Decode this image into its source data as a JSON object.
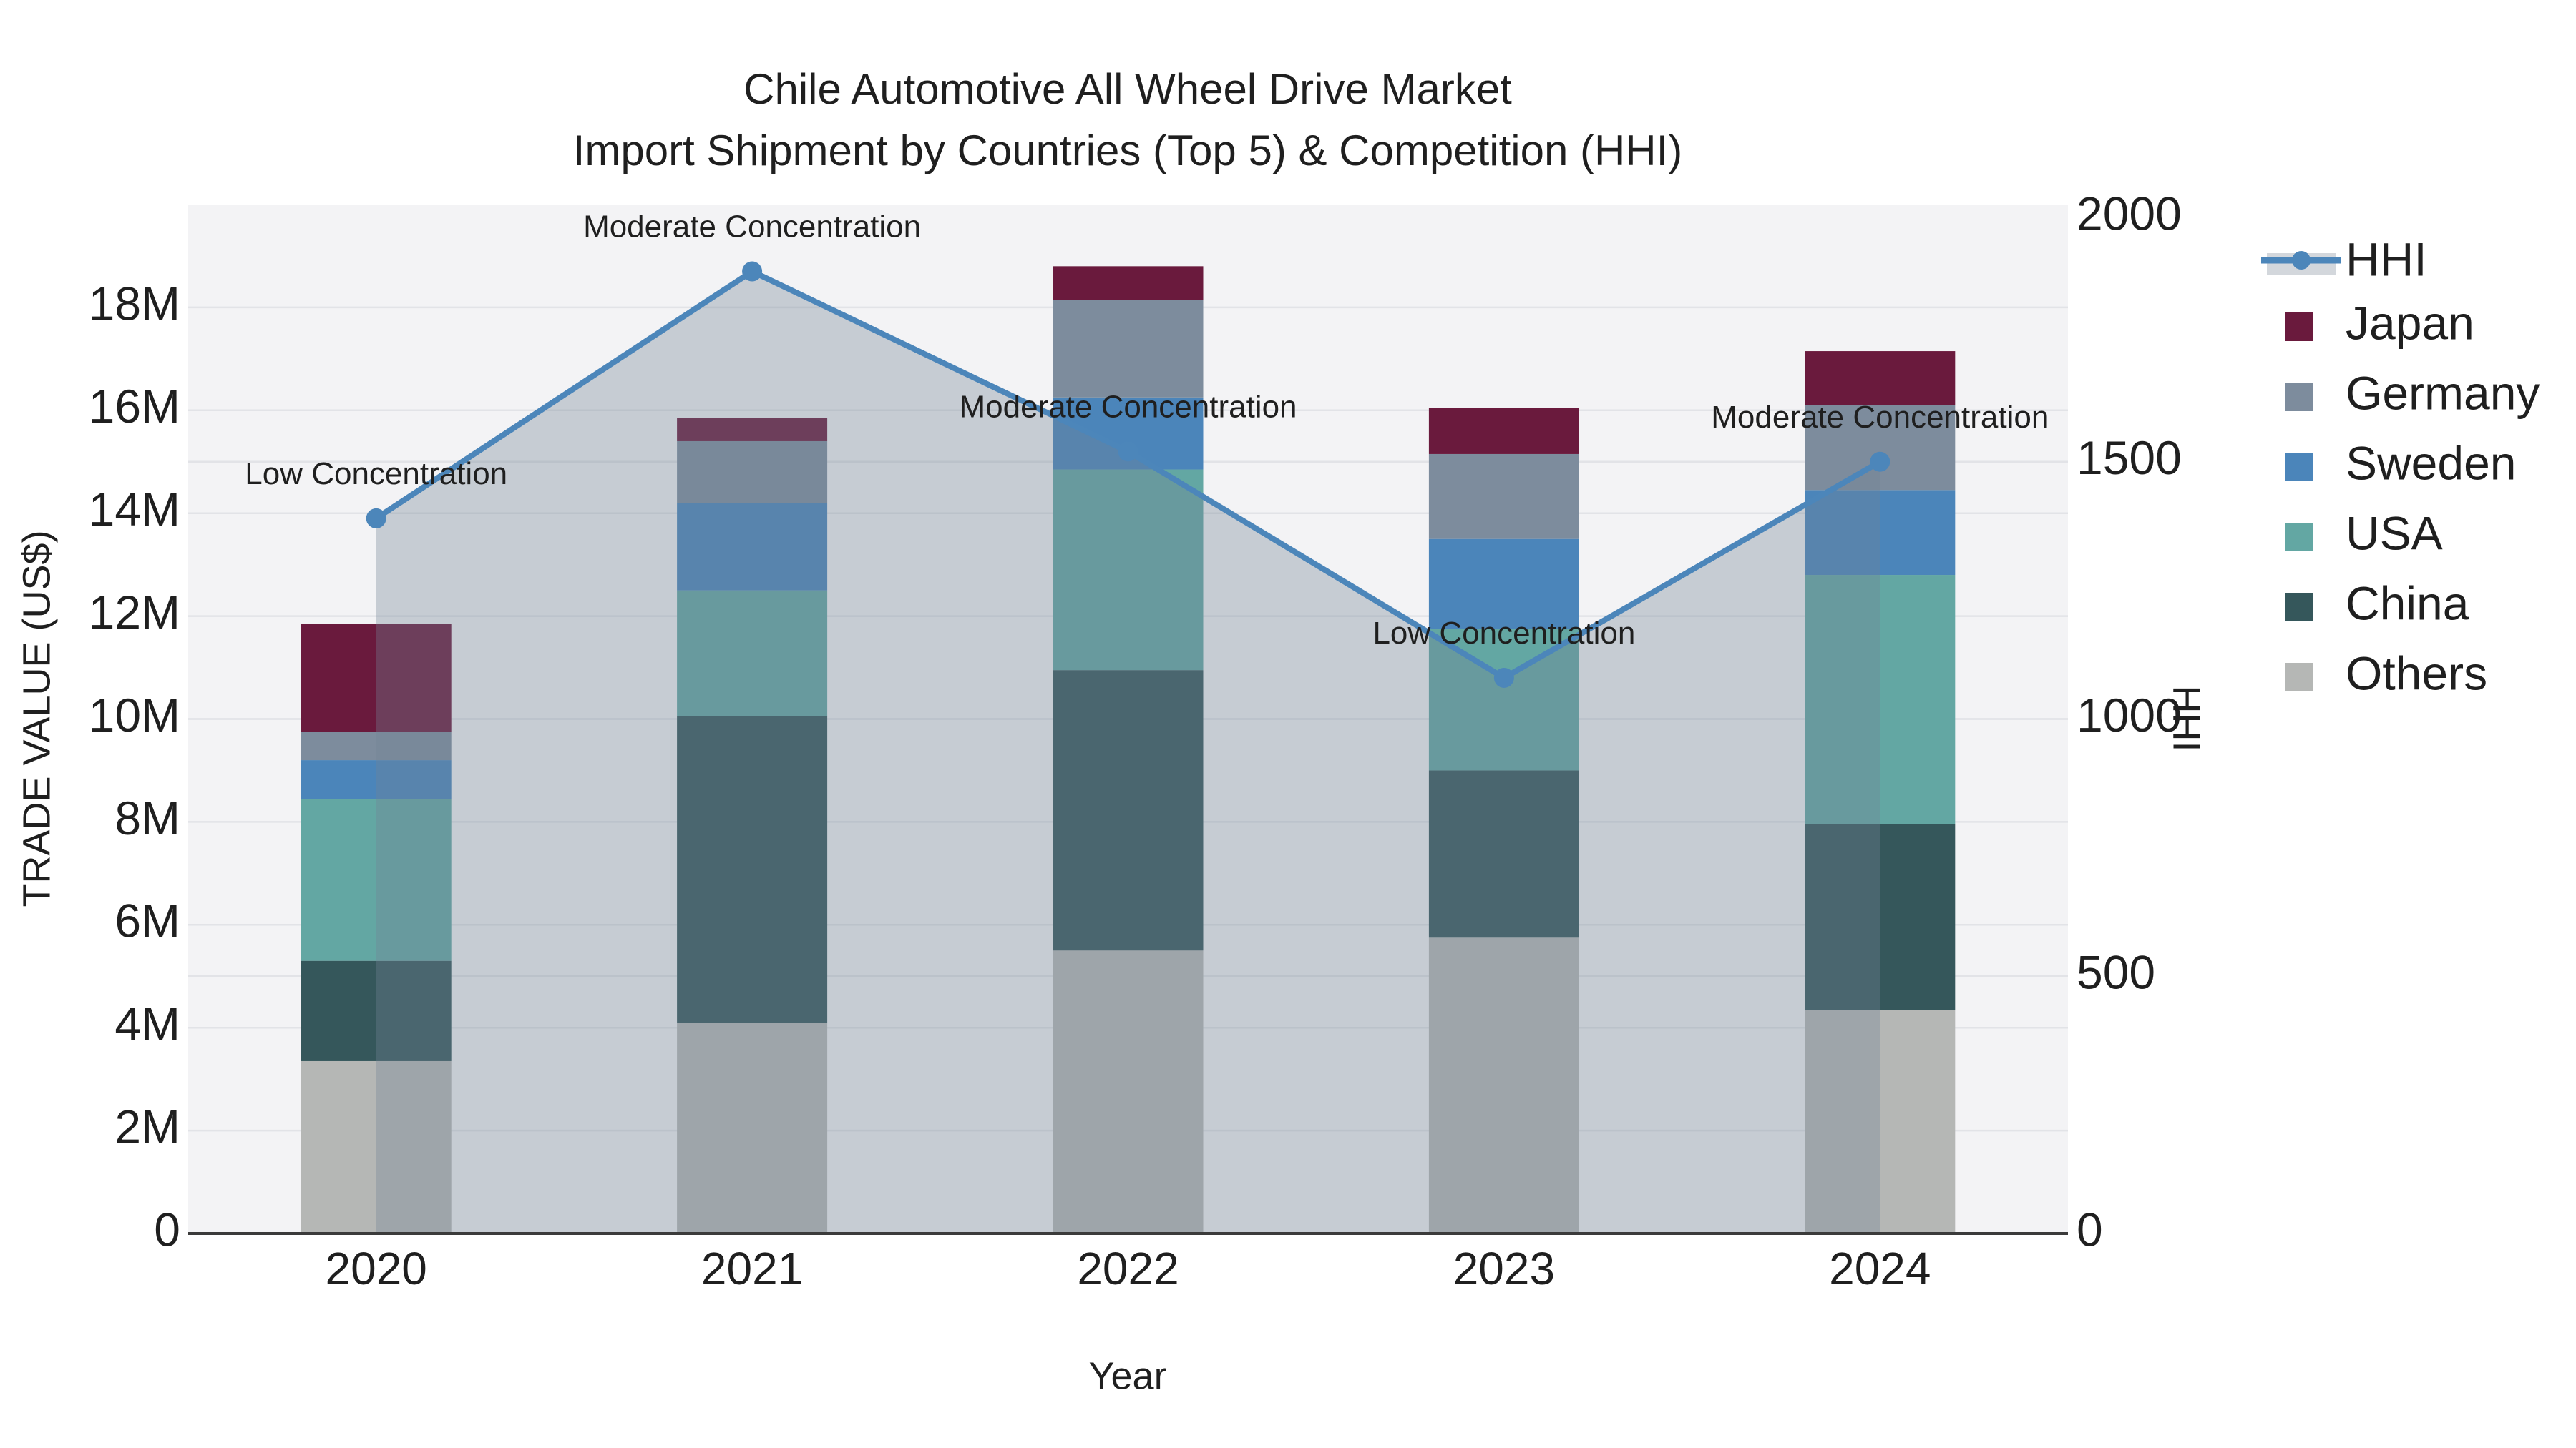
{
  "title": {
    "line1": "Chile Automotive All Wheel Drive Market",
    "line2": "Import Shipment by Countries (Top 5) & Competition (HHI)"
  },
  "colors": {
    "japan": "#6A1A3D",
    "germany": "#7D8C9D",
    "sweden": "#4B85BA",
    "usa": "#63A7A3",
    "china": "#35575B",
    "others": "#B5B7B5",
    "hhi_line": "#4C86BA",
    "area_fill": "rgba(115,132,150,0.35)",
    "legend_band": "#D3D7DC",
    "plot_bg": "#F3F3F5",
    "grid": "#E2E3E7",
    "axis_line": "#3B3B3B",
    "text": "#1F1F1F"
  },
  "legend": {
    "items": [
      {
        "label": "HHI",
        "kind": "line",
        "color_key": "hhi_line"
      },
      {
        "label": "Japan",
        "kind": "swatch",
        "color_key": "japan"
      },
      {
        "label": "Germany",
        "kind": "swatch",
        "color_key": "germany"
      },
      {
        "label": "Sweden",
        "kind": "swatch",
        "color_key": "sweden"
      },
      {
        "label": "USA",
        "kind": "swatch",
        "color_key": "usa"
      },
      {
        "label": "China",
        "kind": "swatch",
        "color_key": "china"
      },
      {
        "label": "Others",
        "kind": "swatch",
        "color_key": "others"
      }
    ]
  },
  "chart_data": {
    "type": "combo-stacked-bar-line",
    "categories": [
      "2020",
      "2021",
      "2022",
      "2023",
      "2024"
    ],
    "bar_unit": "Trade value, millions US$",
    "series": [
      {
        "name": "Others",
        "color_key": "others",
        "values": [
          3.35,
          4.1,
          5.5,
          5.75,
          4.35
        ]
      },
      {
        "name": "China",
        "color_key": "china",
        "values": [
          1.95,
          5.95,
          5.45,
          3.25,
          3.6
        ]
      },
      {
        "name": "USA",
        "color_key": "usa",
        "values": [
          3.15,
          2.45,
          3.9,
          2.75,
          4.85
        ]
      },
      {
        "name": "Sweden",
        "color_key": "sweden",
        "values": [
          0.75,
          1.7,
          1.4,
          1.75,
          1.65
        ]
      },
      {
        "name": "Germany",
        "color_key": "germany",
        "values": [
          0.55,
          1.2,
          1.9,
          1.65,
          1.65
        ]
      },
      {
        "name": "Japan",
        "color_key": "japan",
        "values": [
          2.1,
          0.45,
          0.65,
          0.9,
          1.05
        ]
      }
    ],
    "line": {
      "name": "HHI",
      "values": [
        1390,
        1870,
        1520,
        1080,
        1500
      ],
      "annotations": [
        "Low Concentration",
        "Moderate Concentration",
        "Moderate Concentration",
        "Low Concentration",
        "Moderate Concentration"
      ]
    },
    "left_axis": {
      "title": "TRADE VALUE (US$)",
      "ticks": [
        "0",
        "2M",
        "4M",
        "6M",
        "8M",
        "10M",
        "12M",
        "14M",
        "16M",
        "18M"
      ],
      "tick_values": [
        0,
        2,
        4,
        6,
        8,
        10,
        12,
        14,
        16,
        18
      ],
      "max": 20
    },
    "right_axis": {
      "title": "HHI",
      "ticks": [
        "0",
        "500",
        "1000",
        "1500",
        "2000"
      ],
      "tick_values": [
        0,
        500,
        1000,
        1500,
        2000
      ],
      "grid_values": [
        500,
        1000,
        1500
      ],
      "max": 2000
    },
    "x_axis": {
      "title": "Year"
    },
    "layout": {
      "legend_position": "right",
      "grid": true,
      "area_under_line": true
    }
  }
}
